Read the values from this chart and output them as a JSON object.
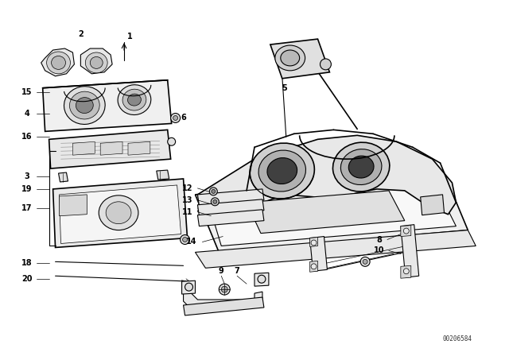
{
  "diagram_id": "00206584",
  "bg_color": "#ffffff",
  "line_color": "#000000",
  "fig_width": 6.4,
  "fig_height": 4.48,
  "dpi": 100,
  "label_fs": 7.0,
  "label_color": "#000000"
}
